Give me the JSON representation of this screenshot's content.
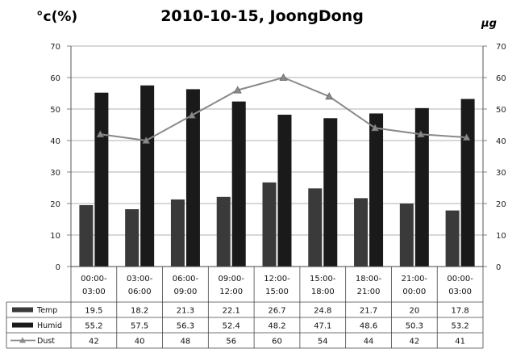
{
  "chart_data": {
    "type": "bar",
    "title": "2010-10-15, JoongDong",
    "ylabel_left": "°c(%)",
    "ylabel_right": "μg",
    "ylim": [
      0,
      70
    ],
    "yticks": [
      0,
      10,
      20,
      30,
      40,
      50,
      60,
      70
    ],
    "categories": [
      [
        "00:00-",
        "03:00"
      ],
      [
        "03:00-",
        "06:00"
      ],
      [
        "06:00-",
        "09:00"
      ],
      [
        "09:00-",
        "12:00"
      ],
      [
        "12:00-",
        "15:00"
      ],
      [
        "15:00-",
        "18:00"
      ],
      [
        "18:00-",
        "21:00"
      ],
      [
        "21:00-",
        "00:00"
      ],
      [
        "00:00-",
        "03:00"
      ]
    ],
    "series": [
      {
        "name": "Temp",
        "kind": "bar",
        "color": "#3a3a3a",
        "values": [
          19.5,
          18.2,
          21.3,
          22.1,
          26.7,
          24.8,
          21.7,
          20,
          17.8
        ],
        "labels": [
          "19.5",
          "18.2",
          "21.3",
          "22.1",
          "26.7",
          "24.8",
          "21.7",
          "20",
          "17.8"
        ]
      },
      {
        "name": "Humid",
        "kind": "bar",
        "color": "#1a1a1a",
        "values": [
          55.2,
          57.5,
          56.3,
          52.4,
          48.2,
          47.1,
          48.6,
          50.3,
          53.2
        ],
        "labels": [
          "55.2",
          "57.5",
          "56.3",
          "52.4",
          "48.2",
          "47.1",
          "48.6",
          "50.3",
          "53.2"
        ]
      },
      {
        "name": "Dust",
        "kind": "line",
        "color": "#8a8a8a",
        "values": [
          42,
          40,
          48,
          56,
          60,
          54,
          44,
          42,
          41
        ],
        "labels": [
          "42",
          "40",
          "48",
          "56",
          "60",
          "54",
          "44",
          "42",
          "41"
        ]
      }
    ],
    "grid": true,
    "legend": "data-table"
  }
}
